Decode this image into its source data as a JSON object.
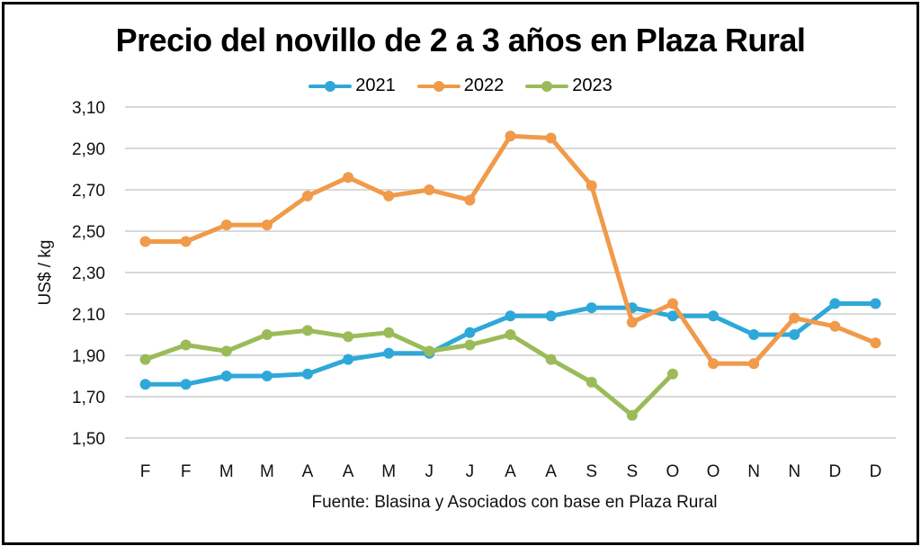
{
  "chart_data": {
    "type": "line",
    "title": "Precio del novillo de 2 a 3 años en Plaza Rural",
    "xlabel": "",
    "ylabel": "US$ / kg",
    "ylim": [
      1.5,
      3.1
    ],
    "yticks": [
      "3,10",
      "2,90",
      "2,70",
      "2,50",
      "2,30",
      "2,10",
      "1,90",
      "1,70",
      "1,50"
    ],
    "ytick_values": [
      3.1,
      2.9,
      2.7,
      2.5,
      2.3,
      2.1,
      1.9,
      1.7,
      1.5
    ],
    "grid": true,
    "legend_position": "top-center",
    "categories": [
      "F",
      "F",
      "M",
      "M",
      "A",
      "A",
      "M",
      "J",
      "J",
      "A",
      "A",
      "S",
      "S",
      "O",
      "O",
      "N",
      "N",
      "D",
      "D"
    ],
    "series": [
      {
        "name": "2021",
        "color": "#2EA8D8",
        "values": [
          1.76,
          1.76,
          1.8,
          1.8,
          1.81,
          1.88,
          1.91,
          1.91,
          2.01,
          2.09,
          2.09,
          2.13,
          2.13,
          2.09,
          2.09,
          2.0,
          2.0,
          2.15,
          2.15
        ]
      },
      {
        "name": "2022",
        "color": "#F09A4A",
        "values": [
          2.45,
          2.45,
          2.53,
          2.53,
          2.67,
          2.76,
          2.67,
          2.7,
          2.65,
          2.96,
          2.95,
          2.72,
          2.06,
          2.15,
          1.86,
          1.86,
          2.08,
          2.04,
          1.96
        ]
      },
      {
        "name": "2023",
        "color": "#9BBB59",
        "values": [
          1.88,
          1.95,
          1.92,
          2.0,
          2.02,
          1.99,
          2.01,
          1.92,
          1.95,
          2.0,
          1.88,
          1.77,
          1.61,
          1.81,
          null,
          null,
          null,
          null,
          null
        ]
      }
    ],
    "source_note": "Fuente: Blasina y Asociados con base en Plaza Rural"
  }
}
